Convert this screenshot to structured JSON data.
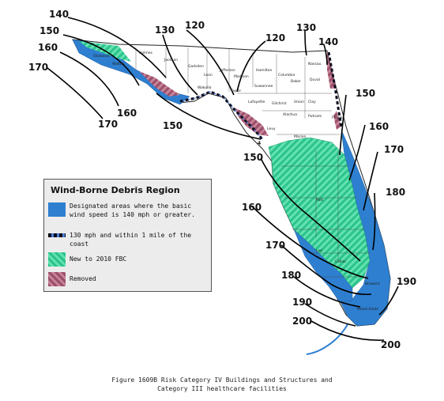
{
  "contour_labels": [
    {
      "id": "c140-nw",
      "text": "140"
    },
    {
      "id": "c150-nw",
      "text": "150"
    },
    {
      "id": "c160-nw",
      "text": "160"
    },
    {
      "id": "c170-nw",
      "text": "170"
    },
    {
      "id": "c130-top",
      "text": "130"
    },
    {
      "id": "c120-top",
      "text": "120"
    },
    {
      "id": "c120-mid",
      "text": "120"
    },
    {
      "id": "c130-ne",
      "text": "130"
    },
    {
      "id": "c140-ne",
      "text": "140"
    },
    {
      "id": "c160-bend",
      "text": "160"
    },
    {
      "id": "c170-low",
      "text": "170"
    },
    {
      "id": "c150-bend",
      "text": "150"
    },
    {
      "id": "c150-east",
      "text": "150"
    },
    {
      "id": "c160-east",
      "text": "160"
    },
    {
      "id": "c170-east",
      "text": "170"
    },
    {
      "id": "c180-east",
      "text": "180"
    },
    {
      "id": "c150-west",
      "text": "150"
    },
    {
      "id": "c160-west",
      "text": "160"
    },
    {
      "id": "c170-west",
      "text": "170"
    },
    {
      "id": "c180-west",
      "text": "180"
    },
    {
      "id": "c190-east",
      "text": "190"
    },
    {
      "id": "c190-sw",
      "text": "190"
    },
    {
      "id": "c200-sw",
      "text": "200"
    },
    {
      "id": "c200-se",
      "text": "200"
    }
  ],
  "marker_label": "4",
  "county_labels": [
    {
      "id": "holmes",
      "text": "Holmes"
    },
    {
      "id": "jackson",
      "text": "Jackson"
    },
    {
      "id": "gadsden",
      "text": "Gadsden"
    },
    {
      "id": "leon",
      "text": "Leon"
    },
    {
      "id": "jefferson",
      "text": "Jefferson"
    },
    {
      "id": "madison",
      "text": "Madison"
    },
    {
      "id": "hamilton",
      "text": "Hamilton"
    },
    {
      "id": "suwannee",
      "text": "Suwannee"
    },
    {
      "id": "columbia",
      "text": "Columbia"
    },
    {
      "id": "nassau",
      "text": "Nassau"
    },
    {
      "id": "baker",
      "text": "Baker"
    },
    {
      "id": "duval",
      "text": "Duval"
    },
    {
      "id": "taylor",
      "text": "Taylor"
    },
    {
      "id": "lafayette",
      "text": "Lafayette"
    },
    {
      "id": "gilchrist",
      "text": "Gilchrist"
    },
    {
      "id": "union",
      "text": "Union"
    },
    {
      "id": "clay",
      "text": "Clay"
    },
    {
      "id": "alachua",
      "text": "Alachua"
    },
    {
      "id": "putnam",
      "text": "Putnam"
    },
    {
      "id": "levy",
      "text": "Levy"
    },
    {
      "id": "marion",
      "text": "Marion"
    },
    {
      "id": "okaloosa",
      "text": "Okaloosa"
    },
    {
      "id": "walton",
      "text": "Walton"
    },
    {
      "id": "wakulla",
      "text": "Wakulla"
    },
    {
      "id": "flagler",
      "text": "Flagler"
    },
    {
      "id": "polk",
      "text": "Polk"
    },
    {
      "id": "lee",
      "text": "Lee"
    },
    {
      "id": "collier",
      "text": "Collier"
    },
    {
      "id": "broward",
      "text": "Broward"
    },
    {
      "id": "miami-dade",
      "text": "Miami-Dade"
    }
  ],
  "legend": {
    "title": "Wind-Borne Debris Region",
    "items": [
      {
        "key": "designated",
        "color": "#2e7fd0",
        "text": "Designated areas where the basic wind speed is 140 mph or greater."
      },
      {
        "key": "coast",
        "color": "#0c0c1e",
        "text": "130 mph and within 1 mile of the coast"
      },
      {
        "key": "new",
        "color": "#2bc38c",
        "text": "New to 2010 FBC"
      },
      {
        "key": "removed",
        "color": "#9c4f6a",
        "text": "Removed"
      }
    ]
  },
  "caption": {
    "line1": "Figure 1609B Risk Category IV Buildings and Structures and",
    "line2": "Category III healthcare facilities"
  }
}
